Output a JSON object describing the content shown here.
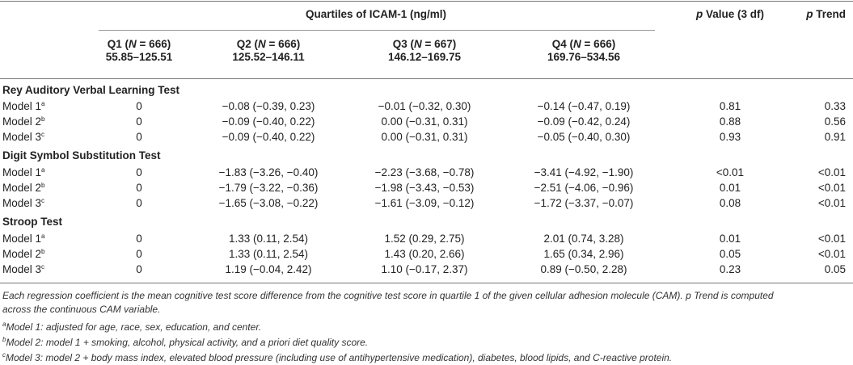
{
  "header": {
    "group_title": "Quartiles of ICAM-1 (ng/ml)",
    "pvalue": {
      "italic": "p",
      "rest": " Value (3 df)"
    },
    "ptrend": {
      "italic": "p",
      "rest": " Trend"
    },
    "quartiles": [
      {
        "label": "Q1",
        "n_label": "N",
        "n_value": " = 666)",
        "range": "55.85–125.51"
      },
      {
        "label": "Q2",
        "n_label": "N",
        "n_value": " = 666)",
        "range": "125.52–146.11"
      },
      {
        "label": "Q3",
        "n_label": "N",
        "n_value": " = 667)",
        "range": "146.12–169.75"
      },
      {
        "label": "Q4",
        "n_label": "N",
        "n_value": " = 666)",
        "range": "169.76–534.56"
      }
    ]
  },
  "sections": [
    {
      "title": "Rey Auditory Verbal Learning Test",
      "rows": [
        {
          "model": "Model 1",
          "sup": "a",
          "q1": "0",
          "q2": "−0.08 (−0.39, 0.23)",
          "q3": "−0.01 (−0.32, 0.30)",
          "q4": "−0.14 (−0.47, 0.19)",
          "p": "0.81",
          "trend": "0.33"
        },
        {
          "model": "Model 2",
          "sup": "b",
          "q1": "0",
          "q2": "−0.09 (−0.40, 0.22)",
          "q3": "0.00 (−0.31, 0.31)",
          "q4": "−0.09 (−0.42, 0.24)",
          "p": "0.88",
          "trend": "0.56"
        },
        {
          "model": "Model 3",
          "sup": "c",
          "q1": "0",
          "q2": "−0.09 (−0.40, 0.22)",
          "q3": "0.00 (−0.31, 0.31)",
          "q4": "−0.05 (−0.40, 0.30)",
          "p": "0.93",
          "trend": "0.91"
        }
      ]
    },
    {
      "title": "Digit Symbol Substitution Test",
      "rows": [
        {
          "model": "Model 1",
          "sup": "a",
          "q1": "0",
          "q2": "−1.83 (−3.26, −0.40)",
          "q3": "−2.23 (−3.68, −0.78)",
          "q4": "−3.41 (−4.92, −1.90)",
          "p": "<0.01",
          "trend": "<0.01"
        },
        {
          "model": "Model 2",
          "sup": "b",
          "q1": "0",
          "q2": "−1.79 (−3.22, −0.36)",
          "q3": "−1.98 (−3.43, −0.53)",
          "q4": "−2.51 (−4.06, −0.96)",
          "p": "0.01",
          "trend": "<0.01"
        },
        {
          "model": "Model 3",
          "sup": "c",
          "q1": "0",
          "q2": "−1.65 (−3.08, −0.22)",
          "q3": "−1.61 (−3.09, −0.12)",
          "q4": "−1.72 (−3.37, −0.07)",
          "p": "0.08",
          "trend": "<0.01"
        }
      ]
    },
    {
      "title": "Stroop Test",
      "rows": [
        {
          "model": "Model 1",
          "sup": "a",
          "q1": "0",
          "q2": "1.33 (0.11, 2.54)",
          "q3": "1.52 (0.29, 2.75)",
          "q4": "2.01 (0.74, 3.28)",
          "p": "0.01",
          "trend": "<0.01"
        },
        {
          "model": "Model 2",
          "sup": "b",
          "q1": "0",
          "q2": "1.33 (0.11, 2.54)",
          "q3": "1.43 (0.20, 2.66)",
          "q4": "1.65 (0.34, 2.96)",
          "p": "0.05",
          "trend": "<0.01"
        },
        {
          "model": "Model 3",
          "sup": "c",
          "q1": "0",
          "q2": "1.19 (−0.04, 2.42)",
          "q3": "1.10 (−0.17, 2.37)",
          "q4": "0.89 (−0.50, 2.28)",
          "p": "0.23",
          "trend": "0.05"
        }
      ]
    }
  ],
  "footnotes": {
    "main_1": "Each regression coefficient is the mean cognitive test score difference from the cognitive test score in quartile 1 of the given cellular adhesion molecule (CAM). p Trend is computed",
    "main_2": "across the continuous CAM variable.",
    "a": {
      "sup": "a",
      "text": "Model 1: adjusted for age, race, sex, education, and center."
    },
    "b": {
      "sup": "b",
      "text": "Model 2: model 1 + smoking, alcohol, physical activity, and a priori diet quality score."
    },
    "c": {
      "sup": "c",
      "text": "Model 3: model 2 + body mass index, elevated blood pressure (including use of antihypertensive medication), diabetes, blood lipids, and C-reactive protein."
    }
  }
}
